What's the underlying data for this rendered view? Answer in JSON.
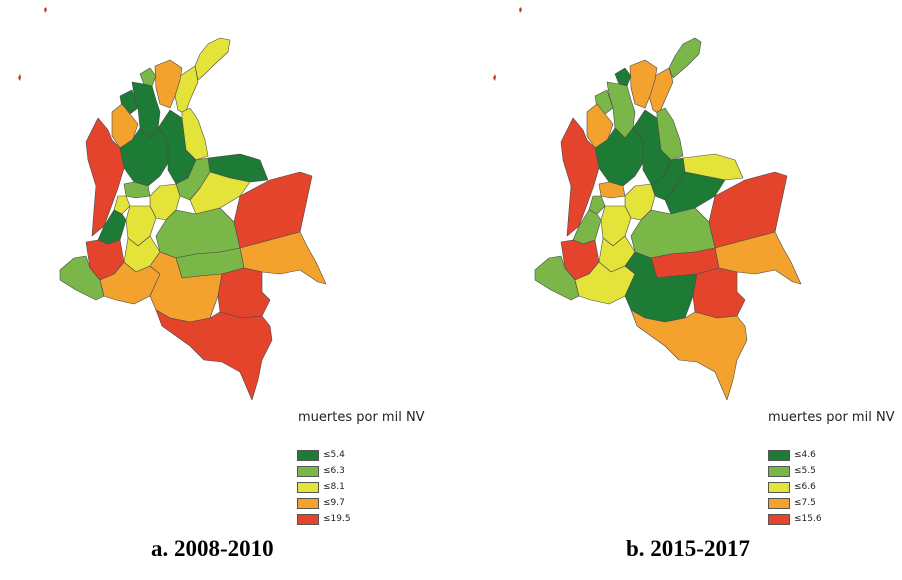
{
  "panels": [
    {
      "caption": "a. 2008-2010",
      "legend": {
        "title": "muertes por mil NV",
        "items": [
          {
            "label": "≤5.4",
            "color": "#1e7b35"
          },
          {
            "label": "≤6.3",
            "color": "#7ab648"
          },
          {
            "label": "≤8.1",
            "color": "#e3e33a"
          },
          {
            "label": "≤9.7",
            "color": "#f2a22d"
          },
          {
            "label": "≤19.5",
            "color": "#e4442c"
          }
        ]
      }
    },
    {
      "caption": "b. 2015-2017",
      "legend": {
        "title": "muertes por mil NV",
        "items": [
          {
            "label": "≤4.6",
            "color": "#1e7b35"
          },
          {
            "label": "≤5.5",
            "color": "#7ab648"
          },
          {
            "label": "≤6.6",
            "color": "#e3e33a"
          },
          {
            "label": "≤7.5",
            "color": "#f2a22d"
          },
          {
            "label": "≤15.6",
            "color": "#e4442c"
          }
        ]
      }
    }
  ]
}
